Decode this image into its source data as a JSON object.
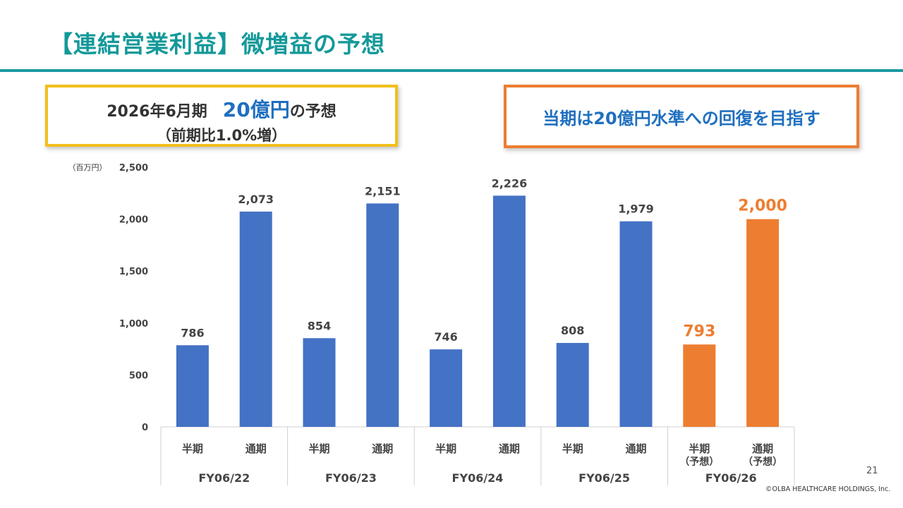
{
  "header": {
    "title": "【連結営業利益】微増益の予想"
  },
  "forecast_box": {
    "line1_prefix": "2026年6月期",
    "line1_highlight": "20億円",
    "line1_suffix": "の予想",
    "line2": "（前期比1.0%増）"
  },
  "goal_box": {
    "text": "当期は20億円水準への回復を目指す"
  },
  "footer": {
    "page_number": "21",
    "copyright": "©OLBA HEALTHCARE HOLDINGS, Inc."
  },
  "colors": {
    "title": "#14999a",
    "actual_bar": "#4472c4",
    "forecast_bar": "#ed7d31",
    "highlight_text": "#1f6fbf"
  },
  "chart_data": {
    "type": "bar",
    "unit_label": "（百万円）",
    "ylim": [
      0,
      2500
    ],
    "yticks": [
      0,
      500,
      1000,
      1500,
      2000,
      2500
    ],
    "ytick_labels": [
      "0",
      "500",
      "1,000",
      "1,500",
      "2,000",
      "2,500"
    ],
    "grid": false,
    "groups": [
      "FY06/22",
      "FY06/23",
      "FY06/24",
      "FY06/25",
      "FY06/26"
    ],
    "bars": [
      {
        "group": "FY06/22",
        "label": "半期",
        "value": 786,
        "value_label": "786",
        "forecast": false
      },
      {
        "group": "FY06/22",
        "label": "通期",
        "value": 2073,
        "value_label": "2,073",
        "forecast": false
      },
      {
        "group": "FY06/23",
        "label": "半期",
        "value": 854,
        "value_label": "854",
        "forecast": false
      },
      {
        "group": "FY06/23",
        "label": "通期",
        "value": 2151,
        "value_label": "2,151",
        "forecast": false
      },
      {
        "group": "FY06/24",
        "label": "半期",
        "value": 746,
        "value_label": "746",
        "forecast": false
      },
      {
        "group": "FY06/24",
        "label": "通期",
        "value": 2226,
        "value_label": "2,226",
        "forecast": false
      },
      {
        "group": "FY06/25",
        "label": "半期",
        "value": 808,
        "value_label": "808",
        "forecast": false
      },
      {
        "group": "FY06/25",
        "label": "通期",
        "value": 1979,
        "value_label": "1,979",
        "forecast": false
      },
      {
        "group": "FY06/26",
        "label": "半期",
        "sublabel": "（予想）",
        "value": 793,
        "value_label": "793",
        "forecast": true
      },
      {
        "group": "FY06/26",
        "label": "通期",
        "sublabel": "（予想）",
        "value": 2000,
        "value_label": "2,000",
        "forecast": true
      }
    ]
  }
}
